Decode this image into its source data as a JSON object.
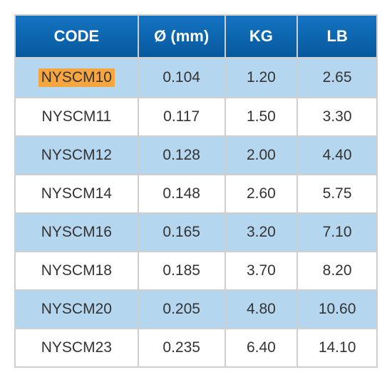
{
  "table": {
    "header_bg": "#0b62a8",
    "header_gradient_top": "#1474c2",
    "header_gradient_bottom": "#07599d",
    "row_alt_bg": "#b5d6ef",
    "row_bg": "#ffffff",
    "border_color": "#cfcfcf",
    "text_color": "#333333",
    "header_text_color": "#ffffff",
    "highlight_bg": "#f7a63f",
    "columns": [
      "CODE",
      "Ø (mm)",
      "KG",
      "LB"
    ],
    "rows": [
      {
        "code": "NYSCM10",
        "mm": "0.104",
        "kg": "1.20",
        "lb": "2.65",
        "highlight": true
      },
      {
        "code": "NYSCM11",
        "mm": "0.117",
        "kg": "1.50",
        "lb": "3.30",
        "highlight": false
      },
      {
        "code": "NYSCM12",
        "mm": "0.128",
        "kg": "2.00",
        "lb": "4.40",
        "highlight": false
      },
      {
        "code": "NYSCM14",
        "mm": "0.148",
        "kg": "2.60",
        "lb": "5.75",
        "highlight": false
      },
      {
        "code": "NYSCM16",
        "mm": "0.165",
        "kg": "3.20",
        "lb": "7.10",
        "highlight": false
      },
      {
        "code": "NYSCM18",
        "mm": "0.185",
        "kg": "3.70",
        "lb": "8.20",
        "highlight": false
      },
      {
        "code": "NYSCM20",
        "mm": "0.205",
        "kg": "4.80",
        "lb": "10.60",
        "highlight": false
      },
      {
        "code": "NYSCM23",
        "mm": "0.235",
        "kg": "6.40",
        "lb": "14.10",
        "highlight": false
      }
    ]
  }
}
